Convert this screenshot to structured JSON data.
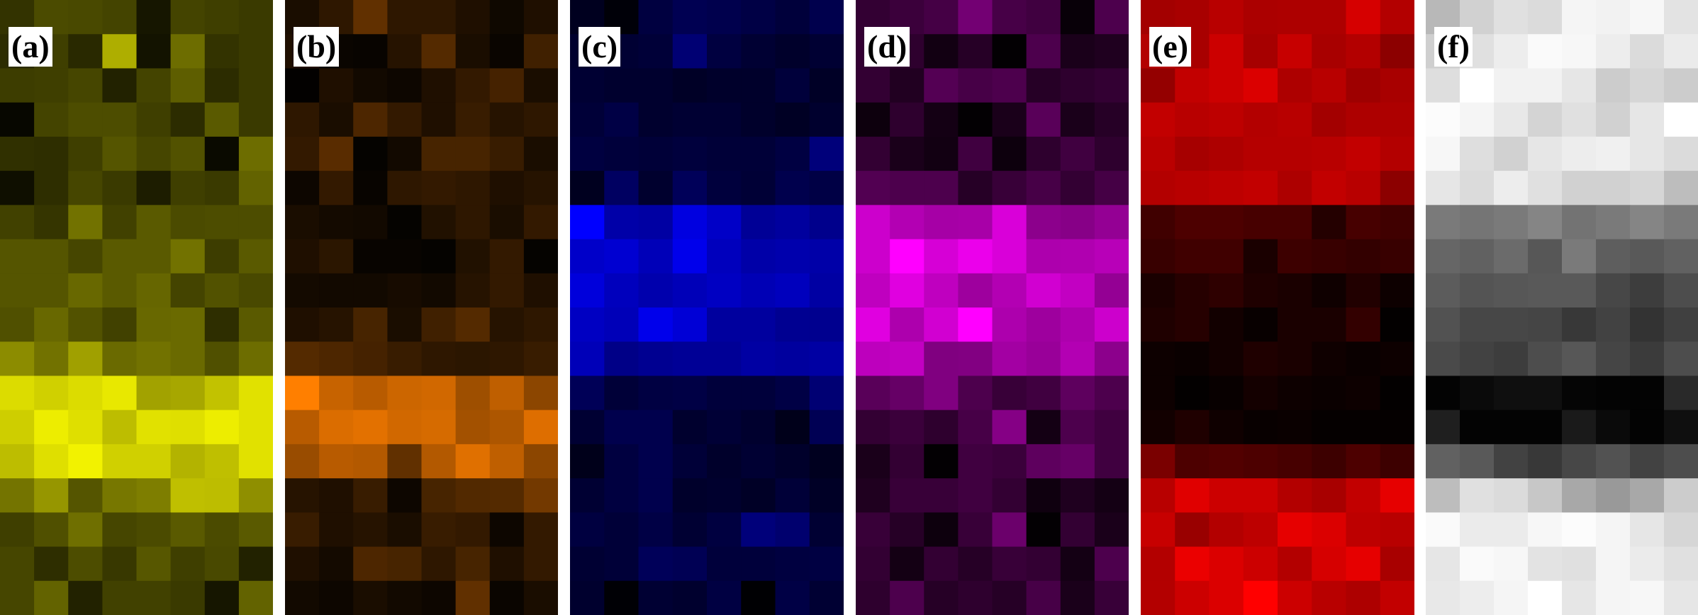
{
  "panels": [
    {
      "label": "(a)",
      "color": "#f2f200",
      "rows": [
        [
          0.21,
          0.31,
          0.3,
          0.28,
          0.09,
          0.28,
          0.26,
          0.24
        ],
        [
          0.18,
          0.26,
          0.17,
          0.72,
          0.08,
          0.45,
          0.21,
          0.24
        ],
        [
          0.25,
          0.26,
          0.29,
          0.14,
          0.28,
          0.39,
          0.18,
          0.24
        ],
        [
          0.03,
          0.28,
          0.32,
          0.32,
          0.26,
          0.18,
          0.37,
          0.24
        ],
        [
          0.2,
          0.19,
          0.26,
          0.35,
          0.29,
          0.34,
          0.04,
          0.45
        ],
        [
          0.06,
          0.19,
          0.29,
          0.24,
          0.12,
          0.26,
          0.24,
          0.41
        ],
        [
          0.27,
          0.22,
          0.47,
          0.27,
          0.37,
          0.31,
          0.32,
          0.32
        ],
        [
          0.35,
          0.35,
          0.29,
          0.37,
          0.37,
          0.47,
          0.25,
          0.37
        ],
        [
          0.35,
          0.35,
          0.43,
          0.37,
          0.42,
          0.28,
          0.34,
          0.3
        ],
        [
          0.33,
          0.43,
          0.34,
          0.27,
          0.43,
          0.44,
          0.19,
          0.37
        ],
        [
          0.58,
          0.47,
          0.66,
          0.44,
          0.47,
          0.44,
          0.33,
          0.45
        ],
        [
          0.91,
          0.86,
          0.91,
          0.96,
          0.67,
          0.69,
          0.8,
          0.93
        ],
        [
          0.85,
          0.98,
          0.92,
          0.78,
          0.93,
          0.92,
          0.98,
          0.93
        ],
        [
          0.78,
          0.92,
          1.0,
          0.86,
          0.86,
          0.74,
          0.79,
          0.93
        ],
        [
          0.48,
          0.62,
          0.35,
          0.49,
          0.52,
          0.79,
          0.78,
          0.59
        ],
        [
          0.26,
          0.33,
          0.46,
          0.29,
          0.31,
          0.37,
          0.31,
          0.37
        ],
        [
          0.29,
          0.19,
          0.32,
          0.23,
          0.36,
          0.26,
          0.3,
          0.14
        ],
        [
          0.29,
          0.41,
          0.14,
          0.27,
          0.27,
          0.24,
          0.09,
          0.41
        ]
      ]
    },
    {
      "label": "(b)",
      "color": "#ff7f00",
      "rows": [
        [
          0.1,
          0.18,
          0.38,
          0.18,
          0.18,
          0.12,
          0.06,
          0.12
        ],
        [
          0.12,
          0.04,
          0.03,
          0.15,
          0.33,
          0.1,
          0.04,
          0.25
        ],
        [
          0.01,
          0.12,
          0.07,
          0.05,
          0.12,
          0.2,
          0.27,
          0.1
        ],
        [
          0.18,
          0.1,
          0.3,
          0.2,
          0.12,
          0.22,
          0.15,
          0.18
        ],
        [
          0.2,
          0.35,
          0.02,
          0.07,
          0.28,
          0.28,
          0.22,
          0.1
        ],
        [
          0.05,
          0.2,
          0.03,
          0.18,
          0.2,
          0.18,
          0.12,
          0.15
        ],
        [
          0.1,
          0.08,
          0.07,
          0.02,
          0.13,
          0.18,
          0.1,
          0.2
        ],
        [
          0.12,
          0.17,
          0.03,
          0.03,
          0.02,
          0.13,
          0.2,
          0.02
        ],
        [
          0.08,
          0.07,
          0.07,
          0.09,
          0.07,
          0.15,
          0.2,
          0.12
        ],
        [
          0.12,
          0.15,
          0.28,
          0.1,
          0.25,
          0.33,
          0.15,
          0.18
        ],
        [
          0.33,
          0.3,
          0.27,
          0.22,
          0.18,
          0.17,
          0.18,
          0.22
        ],
        [
          1.0,
          0.78,
          0.72,
          0.8,
          0.82,
          0.62,
          0.75,
          0.55
        ],
        [
          0.72,
          0.86,
          0.89,
          0.82,
          0.84,
          0.64,
          0.68,
          0.87
        ],
        [
          0.6,
          0.72,
          0.7,
          0.38,
          0.7,
          0.88,
          0.75,
          0.55
        ],
        [
          0.15,
          0.12,
          0.22,
          0.05,
          0.28,
          0.32,
          0.33,
          0.45
        ],
        [
          0.22,
          0.12,
          0.15,
          0.1,
          0.22,
          0.2,
          0.05,
          0.2
        ],
        [
          0.12,
          0.08,
          0.3,
          0.28,
          0.18,
          0.28,
          0.12,
          0.2
        ],
        [
          0.07,
          0.05,
          0.1,
          0.07,
          0.05,
          0.38,
          0.04,
          0.1
        ]
      ]
    },
    {
      "label": "(c)",
      "color": "#0000ff",
      "rows": [
        [
          0.12,
          0.03,
          0.25,
          0.32,
          0.3,
          0.27,
          0.23,
          0.3
        ],
        [
          0.18,
          0.2,
          0.22,
          0.45,
          0.25,
          0.2,
          0.17,
          0.2
        ],
        [
          0.2,
          0.18,
          0.18,
          0.15,
          0.17,
          0.17,
          0.23,
          0.15
        ],
        [
          0.22,
          0.27,
          0.18,
          0.2,
          0.2,
          0.17,
          0.14,
          0.18
        ],
        [
          0.25,
          0.23,
          0.22,
          0.24,
          0.22,
          0.22,
          0.26,
          0.48
        ],
        [
          0.12,
          0.38,
          0.18,
          0.35,
          0.24,
          0.21,
          0.3,
          0.27
        ],
        [
          1.0,
          0.66,
          0.64,
          0.88,
          0.78,
          0.59,
          0.62,
          0.55
        ],
        [
          0.79,
          0.82,
          0.72,
          0.92,
          0.74,
          0.66,
          0.68,
          0.66
        ],
        [
          0.86,
          0.74,
          0.68,
          0.72,
          0.76,
          0.71,
          0.74,
          0.64
        ],
        [
          0.76,
          0.72,
          0.92,
          0.84,
          0.62,
          0.62,
          0.57,
          0.56
        ],
        [
          0.72,
          0.53,
          0.57,
          0.59,
          0.59,
          0.64,
          0.62,
          0.64
        ],
        [
          0.34,
          0.22,
          0.26,
          0.27,
          0.23,
          0.23,
          0.27,
          0.45
        ],
        [
          0.2,
          0.3,
          0.3,
          0.18,
          0.21,
          0.18,
          0.1,
          0.33
        ],
        [
          0.1,
          0.25,
          0.3,
          0.22,
          0.17,
          0.2,
          0.17,
          0.12
        ],
        [
          0.2,
          0.25,
          0.3,
          0.17,
          0.18,
          0.15,
          0.22,
          0.15
        ],
        [
          0.25,
          0.22,
          0.27,
          0.2,
          0.25,
          0.48,
          0.43,
          0.2
        ],
        [
          0.2,
          0.22,
          0.35,
          0.33,
          0.23,
          0.23,
          0.25,
          0.26
        ],
        [
          0.18,
          0.02,
          0.2,
          0.18,
          0.26,
          0.01,
          0.27,
          0.2
        ]
      ]
    },
    {
      "label": "(d)",
      "color": "#ff00ff",
      "rows": [
        [
          0.2,
          0.23,
          0.27,
          0.45,
          0.28,
          0.25,
          0.03,
          0.3
        ],
        [
          0.2,
          0.18,
          0.07,
          0.15,
          0.01,
          0.3,
          0.1,
          0.12
        ],
        [
          0.2,
          0.13,
          0.33,
          0.28,
          0.3,
          0.15,
          0.18,
          0.2
        ],
        [
          0.05,
          0.18,
          0.08,
          0.01,
          0.1,
          0.35,
          0.1,
          0.15
        ],
        [
          0.2,
          0.1,
          0.07,
          0.25,
          0.05,
          0.18,
          0.25,
          0.18
        ],
        [
          0.32,
          0.3,
          0.3,
          0.15,
          0.22,
          0.28,
          0.2,
          0.27
        ],
        [
          0.8,
          0.7,
          0.65,
          0.66,
          0.85,
          0.55,
          0.53,
          0.58
        ],
        [
          0.8,
          1.0,
          0.84,
          0.92,
          0.85,
          0.68,
          0.69,
          0.72
        ],
        [
          0.75,
          0.88,
          0.75,
          0.62,
          0.7,
          0.82,
          0.76,
          0.58
        ],
        [
          0.88,
          0.68,
          0.82,
          1.0,
          0.68,
          0.62,
          0.68,
          0.8
        ],
        [
          0.74,
          0.76,
          0.5,
          0.51,
          0.64,
          0.6,
          0.7,
          0.55
        ],
        [
          0.35,
          0.4,
          0.5,
          0.3,
          0.22,
          0.25,
          0.37,
          0.3
        ],
        [
          0.2,
          0.23,
          0.18,
          0.28,
          0.52,
          0.08,
          0.3,
          0.25
        ],
        [
          0.1,
          0.2,
          0.01,
          0.25,
          0.23,
          0.37,
          0.4,
          0.25
        ],
        [
          0.12,
          0.22,
          0.22,
          0.25,
          0.2,
          0.06,
          0.12,
          0.08
        ],
        [
          0.22,
          0.15,
          0.05,
          0.22,
          0.42,
          0.01,
          0.2,
          0.1
        ],
        [
          0.2,
          0.08,
          0.2,
          0.15,
          0.22,
          0.2,
          0.08,
          0.3
        ],
        [
          0.18,
          0.3,
          0.15,
          0.18,
          0.15,
          0.28,
          0.1,
          0.22
        ]
      ]
    },
    {
      "label": "(e)",
      "color": "#ff0000",
      "rows": [
        [
          0.64,
          0.66,
          0.72,
          0.67,
          0.68,
          0.68,
          0.84,
          0.7
        ],
        [
          0.7,
          0.66,
          0.8,
          0.65,
          0.78,
          0.66,
          0.7,
          0.55
        ],
        [
          0.58,
          0.76,
          0.8,
          0.86,
          0.68,
          0.72,
          0.62,
          0.66
        ],
        [
          0.76,
          0.72,
          0.74,
          0.7,
          0.72,
          0.64,
          0.68,
          0.68
        ],
        [
          0.73,
          0.65,
          0.68,
          0.71,
          0.71,
          0.72,
          0.76,
          0.7
        ],
        [
          0.7,
          0.72,
          0.74,
          0.76,
          0.68,
          0.76,
          0.72,
          0.55
        ],
        [
          0.25,
          0.3,
          0.3,
          0.28,
          0.28,
          0.14,
          0.28,
          0.25
        ],
        [
          0.22,
          0.25,
          0.25,
          0.1,
          0.24,
          0.22,
          0.2,
          0.22
        ],
        [
          0.1,
          0.15,
          0.18,
          0.12,
          0.1,
          0.06,
          0.13,
          0.05
        ],
        [
          0.12,
          0.15,
          0.07,
          0.03,
          0.1,
          0.1,
          0.2,
          0.01
        ],
        [
          0.05,
          0.04,
          0.07,
          0.12,
          0.1,
          0.06,
          0.04,
          0.05
        ],
        [
          0.05,
          0.01,
          0.03,
          0.08,
          0.05,
          0.04,
          0.05,
          0.01
        ],
        [
          0.07,
          0.12,
          0.06,
          0.03,
          0.04,
          0.02,
          0.02,
          0.02
        ],
        [
          0.48,
          0.3,
          0.32,
          0.3,
          0.28,
          0.24,
          0.3,
          0.24
        ],
        [
          0.72,
          0.88,
          0.8,
          0.8,
          0.7,
          0.66,
          0.76,
          0.9
        ],
        [
          0.78,
          0.6,
          0.7,
          0.74,
          0.9,
          0.86,
          0.74,
          0.72
        ],
        [
          0.7,
          0.92,
          0.86,
          0.8,
          0.7,
          0.84,
          0.9,
          0.66
        ],
        [
          0.7,
          0.8,
          0.86,
          1.0,
          0.8,
          0.72,
          0.68,
          0.76
        ]
      ]
    },
    {
      "label": "(f)",
      "color": "#ffffff",
      "rows": [
        [
          0.72,
          0.82,
          0.88,
          0.86,
          0.96,
          0.95,
          0.97,
          0.89
        ],
        [
          0.81,
          0.88,
          0.93,
          0.98,
          0.97,
          0.93,
          0.86,
          0.92
        ],
        [
          0.87,
          1.0,
          0.95,
          0.95,
          0.9,
          0.8,
          0.84,
          0.8
        ],
        [
          0.99,
          0.96,
          0.91,
          0.83,
          0.88,
          0.82,
          0.9,
          1.0
        ],
        [
          0.97,
          0.87,
          0.82,
          0.9,
          0.93,
          0.94,
          0.9,
          0.86
        ],
        [
          0.9,
          0.86,
          0.93,
          0.88,
          0.82,
          0.82,
          0.84,
          0.74
        ],
        [
          0.48,
          0.46,
          0.48,
          0.52,
          0.45,
          0.48,
          0.52,
          0.48
        ],
        [
          0.4,
          0.38,
          0.42,
          0.34,
          0.48,
          0.37,
          0.35,
          0.38
        ],
        [
          0.36,
          0.33,
          0.34,
          0.35,
          0.35,
          0.28,
          0.24,
          0.3
        ],
        [
          0.32,
          0.28,
          0.28,
          0.27,
          0.22,
          0.26,
          0.2,
          0.25
        ],
        [
          0.29,
          0.26,
          0.24,
          0.3,
          0.34,
          0.27,
          0.23,
          0.3
        ],
        [
          0.01,
          0.04,
          0.06,
          0.06,
          0.02,
          0.01,
          0.01,
          0.16
        ],
        [
          0.12,
          0.01,
          0.01,
          0.01,
          0.1,
          0.04,
          0.01,
          0.06
        ],
        [
          0.38,
          0.35,
          0.26,
          0.22,
          0.28,
          0.32,
          0.26,
          0.3
        ],
        [
          0.74,
          0.88,
          0.86,
          0.78,
          0.66,
          0.6,
          0.66,
          0.8
        ],
        [
          0.98,
          0.92,
          0.92,
          0.97,
          0.99,
          0.96,
          0.9,
          0.84
        ],
        [
          0.9,
          0.98,
          0.97,
          0.89,
          0.88,
          0.96,
          0.92,
          0.88
        ],
        [
          0.91,
          0.93,
          0.96,
          1.0,
          0.9,
          0.96,
          0.97,
          0.9
        ]
      ]
    }
  ]
}
